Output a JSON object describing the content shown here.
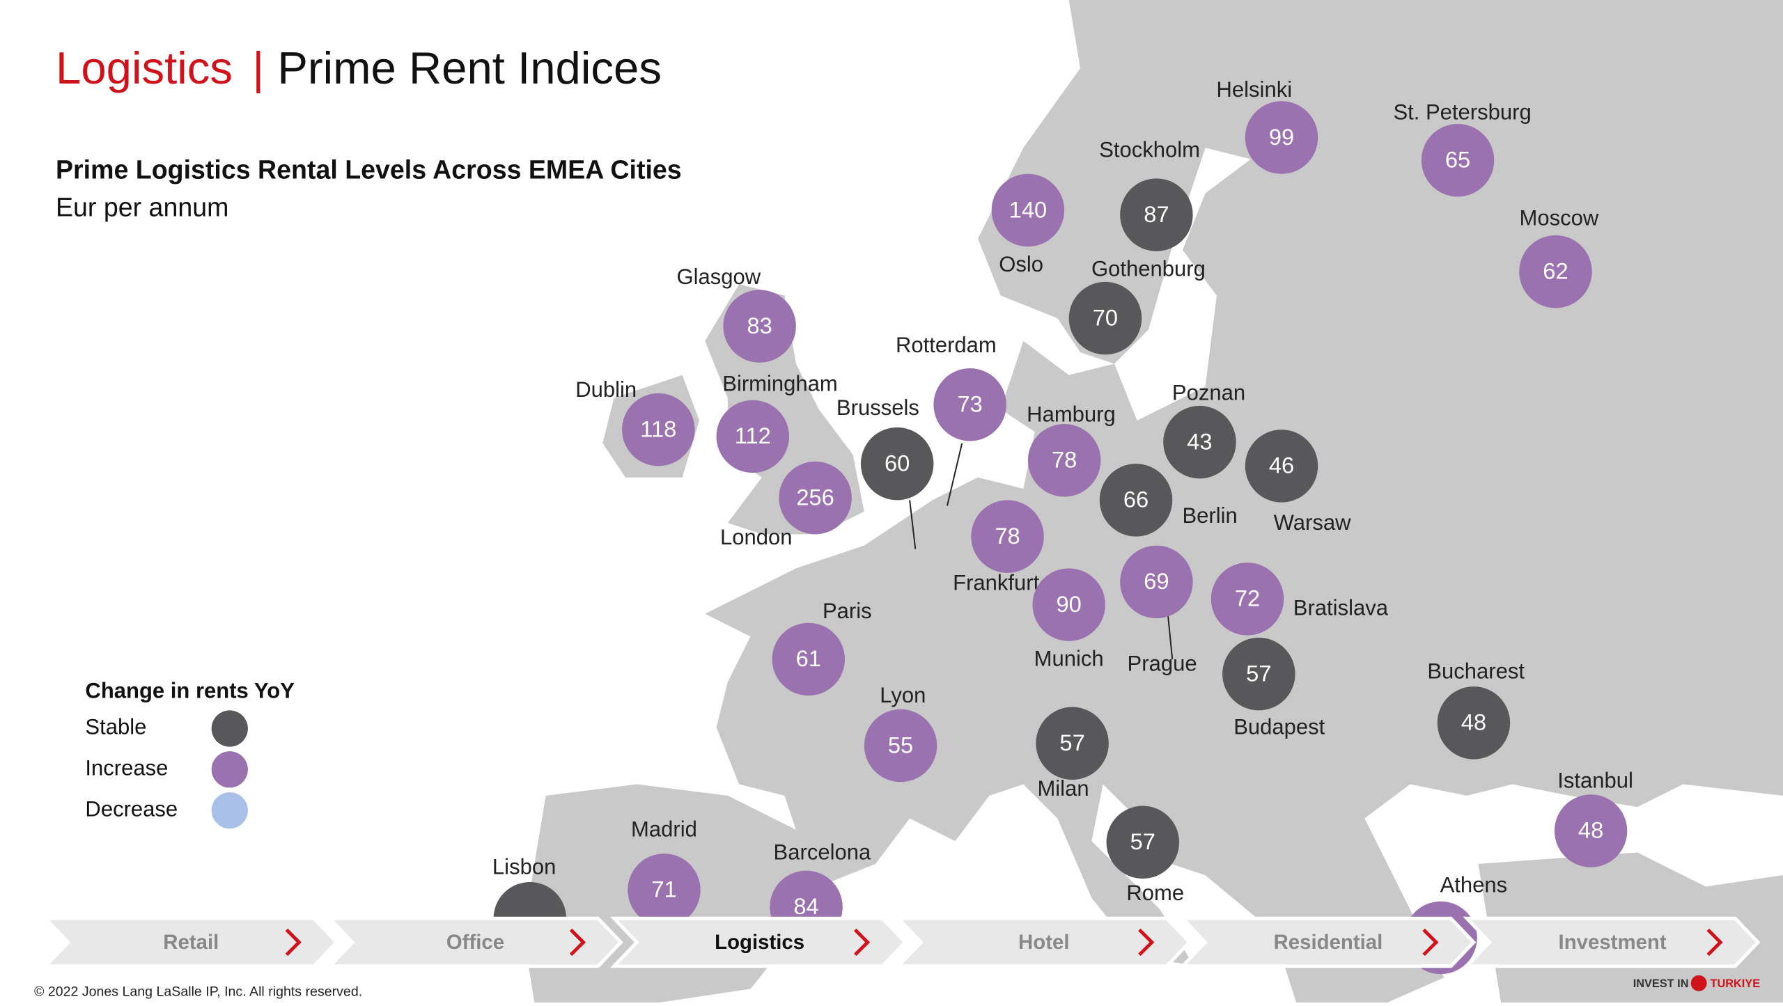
{
  "header": {
    "title_accent": "Logistics",
    "title_sep": "|",
    "title": "Prime Rent Indices",
    "subtitle": "Prime Logistics Rental Levels Across EMEA Cities",
    "unit": "Eur per annum"
  },
  "legend": {
    "title": "Change in rents YoY",
    "items": [
      {
        "label": "Stable",
        "color": "#58585a"
      },
      {
        "label": "Increase",
        "color": "#9b72b0"
      },
      {
        "label": "Decrease",
        "color": "#a9c1e8"
      }
    ]
  },
  "cities": [
    {
      "name": "Helsinki",
      "value": 99,
      "change": "Increase"
    },
    {
      "name": "St. Petersburg",
      "value": 65,
      "change": "Increase"
    },
    {
      "name": "Stockholm",
      "value": 87,
      "change": "Stable"
    },
    {
      "name": "Oslo",
      "value": 140,
      "change": "Increase"
    },
    {
      "name": "Moscow",
      "value": 62,
      "change": "Increase"
    },
    {
      "name": "Gothenburg",
      "value": 70,
      "change": "Stable"
    },
    {
      "name": "Glasgow",
      "value": 83,
      "change": "Increase"
    },
    {
      "name": "Rotterdam",
      "value": 73,
      "change": "Increase"
    },
    {
      "name": "Dublin",
      "value": 118,
      "change": "Increase"
    },
    {
      "name": "Birmingham",
      "value": 112,
      "change": "Increase"
    },
    {
      "name": "Brussels",
      "value": 60,
      "change": "Stable"
    },
    {
      "name": "Hamburg",
      "value": 78,
      "change": "Increase"
    },
    {
      "name": "Poznan",
      "value": 43,
      "change": "Stable"
    },
    {
      "name": "Warsaw",
      "value": 46,
      "change": "Stable"
    },
    {
      "name": "Berlin",
      "value": 66,
      "change": "Stable"
    },
    {
      "name": "London",
      "value": 256,
      "change": "Increase"
    },
    {
      "name": "Frankfurt",
      "value": 78,
      "change": "Increase"
    },
    {
      "name": "Prague",
      "value": 69,
      "change": "Increase"
    },
    {
      "name": "Bratislava",
      "value": 72,
      "change": "Increase"
    },
    {
      "name": "Munich",
      "value": 90,
      "change": "Increase"
    },
    {
      "name": "Paris",
      "value": 61,
      "change": "Increase"
    },
    {
      "name": "Budapest",
      "value": 57,
      "change": "Stable"
    },
    {
      "name": "Bucharest",
      "value": 48,
      "change": "Stable"
    },
    {
      "name": "Lyon",
      "value": 55,
      "change": "Increase"
    },
    {
      "name": "Milan",
      "value": 57,
      "change": "Stable"
    },
    {
      "name": "Istanbul",
      "value": 48,
      "change": "Increase"
    },
    {
      "name": "Rome",
      "value": 57,
      "change": "Stable"
    },
    {
      "name": "Madrid",
      "value": 71,
      "change": "Increase"
    },
    {
      "name": "Barcelona",
      "value": 84,
      "change": "Increase"
    },
    {
      "name": "Lisbon",
      "change": "Stable"
    },
    {
      "name": "Athens",
      "change": "Increase"
    }
  ],
  "tabs": [
    {
      "label": "Retail"
    },
    {
      "label": "Office"
    },
    {
      "label": "Logistics",
      "active": true
    },
    {
      "label": "Hotel"
    },
    {
      "label": "Residential"
    },
    {
      "label": "Investment"
    }
  ],
  "footer": {
    "copyright": "© 2022 Jones Lang LaSalle IP, Inc. All rights reserved.",
    "logo_left": "INVEST IN",
    "logo_right": "TURKIYE"
  }
}
